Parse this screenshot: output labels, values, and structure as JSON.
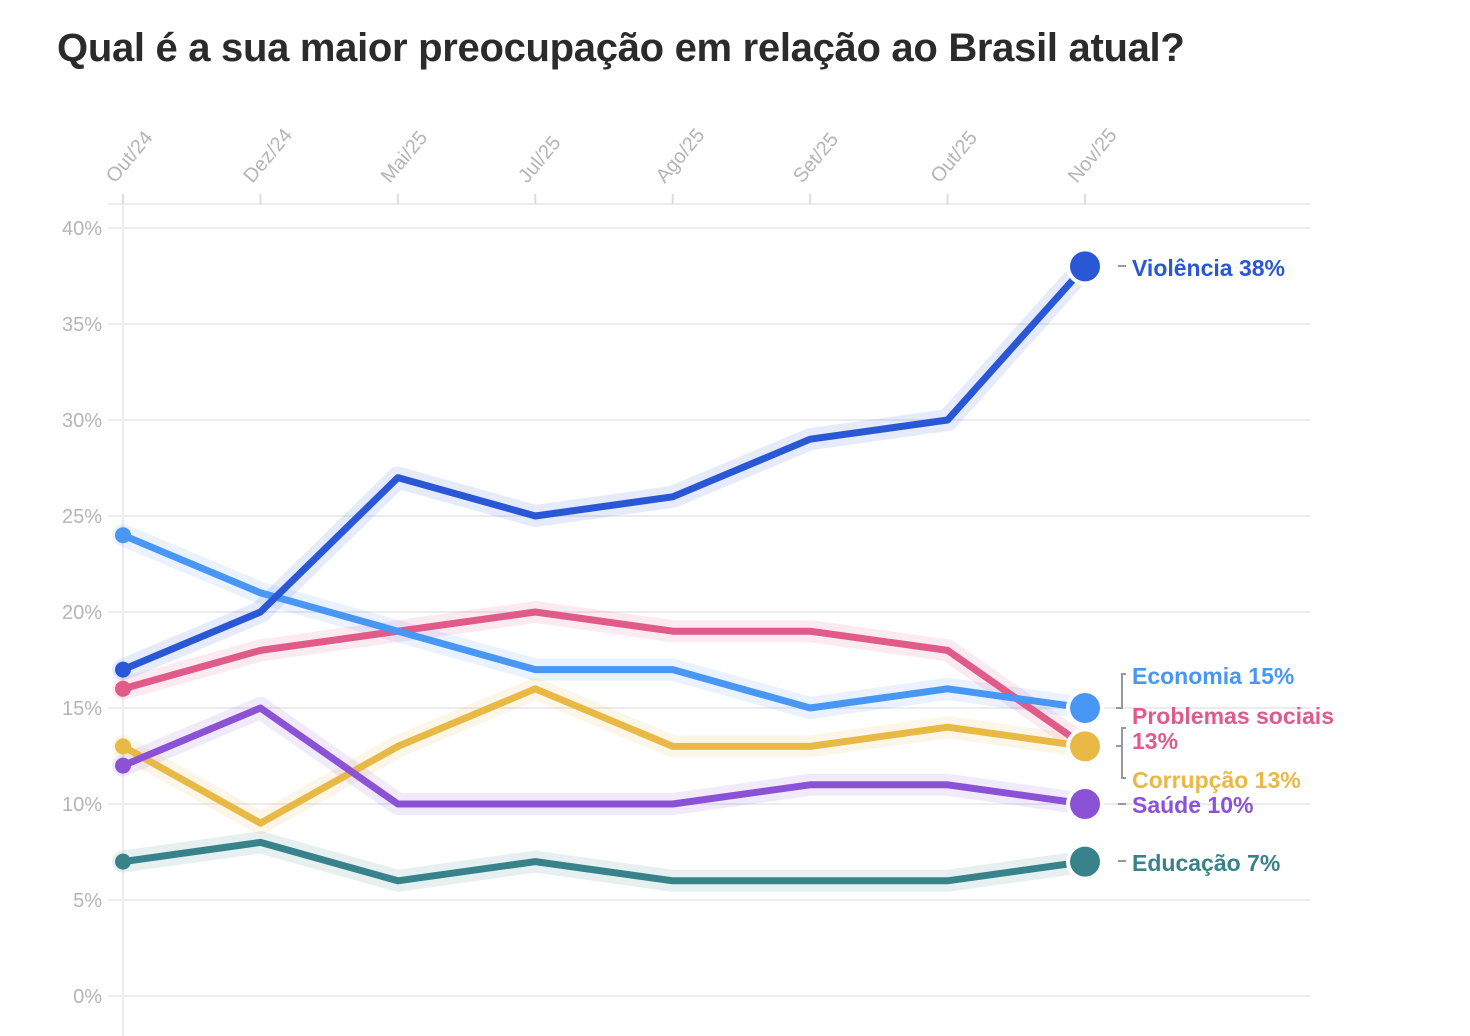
{
  "chart_data": {
    "type": "line",
    "title": "Qual é a sua maior preocupação em relação ao Brasil atual?",
    "categories": [
      "Out/24",
      "Dez/24",
      "Mai/25",
      "Jul/25",
      "Ago/25",
      "Set/25",
      "Out/25",
      "Nov/25"
    ],
    "ylim": [
      0,
      40
    ],
    "yticks": [
      "0%",
      "5%",
      "10%",
      "15%",
      "20%",
      "25%",
      "30%",
      "35%",
      "40%"
    ],
    "ytick_values": [
      0,
      5,
      10,
      15,
      20,
      25,
      30,
      35,
      40
    ],
    "grid": true,
    "legend": "end-labels-right",
    "series": [
      {
        "name": "Violência",
        "color": "#2a57d6",
        "values": [
          17,
          20,
          27,
          25,
          26,
          29,
          30,
          38
        ],
        "label": "Violência 38%"
      },
      {
        "name": "Economia",
        "color": "#4897f4",
        "values": [
          24,
          21,
          19,
          17,
          17,
          15,
          16,
          15
        ],
        "label": "Economia 15%"
      },
      {
        "name": "Problemas sociais",
        "color": "#e05a8a",
        "values": [
          16,
          18,
          19,
          20,
          19,
          19,
          18,
          13
        ],
        "label": "Problemas sociais 13%",
        "label_lines": [
          "Problemas sociais",
          "13%"
        ]
      },
      {
        "name": "Corrupção",
        "color": "#e8b944",
        "values": [
          13,
          9,
          13,
          16,
          13,
          13,
          14,
          13
        ],
        "label": "Corrupção 13%"
      },
      {
        "name": "Saúde",
        "color": "#8c52d6",
        "values": [
          12,
          15,
          10,
          10,
          10,
          11,
          11,
          10
        ],
        "label": "Saúde 10%"
      },
      {
        "name": "Educação",
        "color": "#38828b",
        "values": [
          7,
          8,
          6,
          7,
          6,
          6,
          6,
          7
        ],
        "label": "Educação 7%"
      }
    ]
  }
}
